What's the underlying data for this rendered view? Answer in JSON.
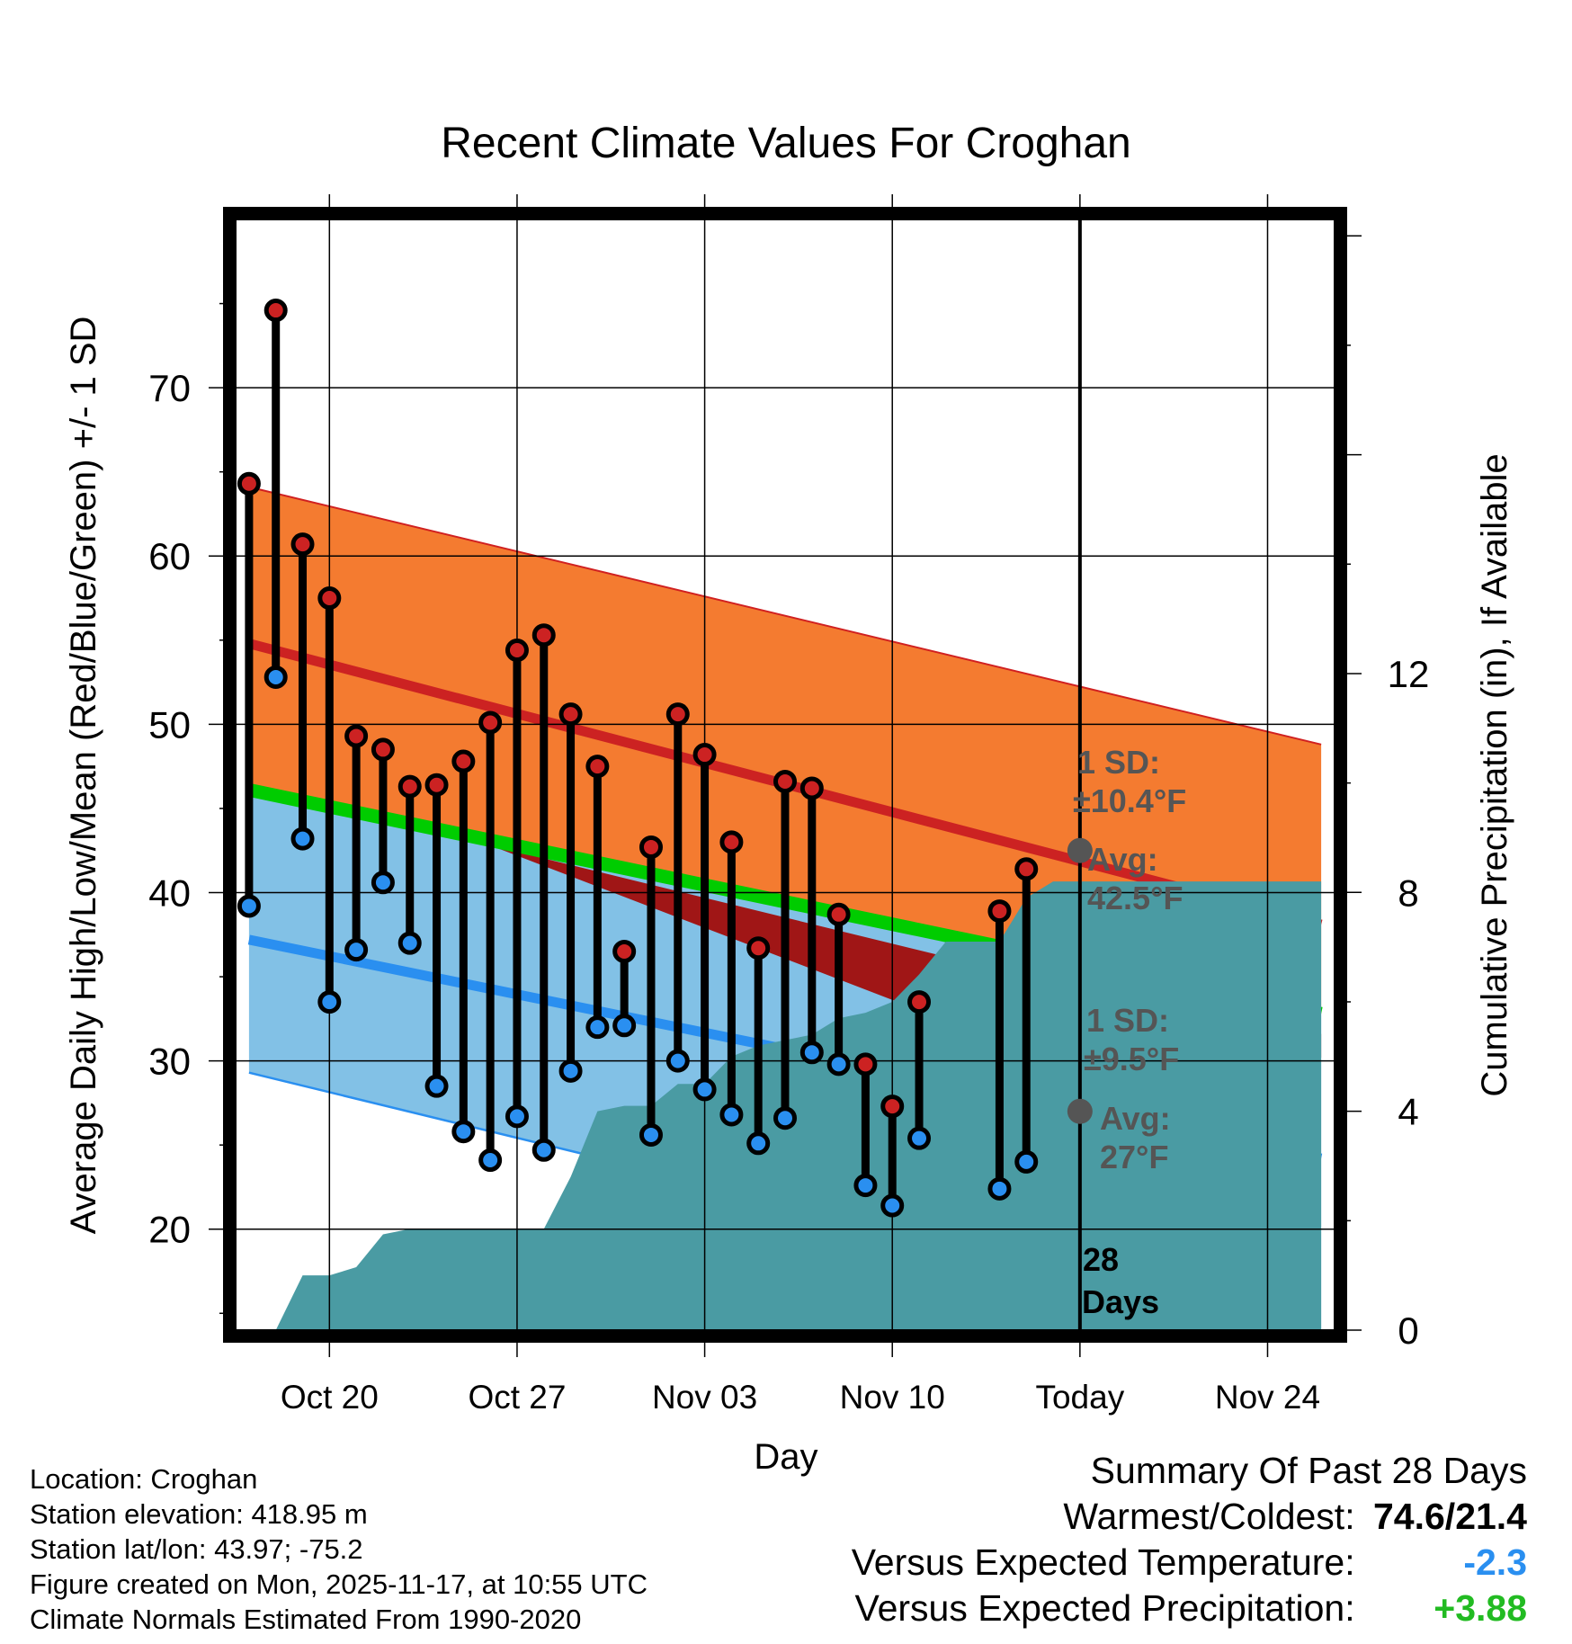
{
  "chart_data": {
    "type": "line",
    "title": "Recent Climate Values For Croghan",
    "xlabel": "Day",
    "ylabel": "Average Daily High/Low/Mean (Red/Blue/Green) +/- 1 SD",
    "y2label": "Cumulative Precipitation (in), If Available",
    "x_tick_labels": [
      "Oct 20",
      "Oct 27",
      "Nov 03",
      "Nov 10",
      "Today",
      "Nov 24"
    ],
    "x_tick_days": [
      3,
      10,
      17,
      24,
      31,
      38
    ],
    "xlim": [
      -0.5,
      40.5
    ],
    "ylim": [
      14,
      80
    ],
    "y_ticks": [
      20,
      30,
      40,
      50,
      60,
      70
    ],
    "y2lim": [
      0,
      20.3
    ],
    "y2_ticks": [
      0,
      4,
      8,
      12
    ],
    "today_day": 31,
    "series": [
      {
        "name": "Daily High",
        "color": "#cc2222",
        "x": [
          0,
          1,
          2,
          3,
          4,
          5,
          6,
          7,
          8,
          9,
          10,
          11,
          12,
          13,
          14,
          15,
          16,
          17,
          18,
          19,
          20,
          21,
          22,
          23,
          24,
          25,
          26,
          27,
          28,
          29
        ],
        "values": [
          64.3,
          74.6,
          60.7,
          57.5,
          49.3,
          48.5,
          46.3,
          46.4,
          47.8,
          50.1,
          54.4,
          55.3,
          50.6,
          47.5,
          36.5,
          42.7,
          50.6,
          48.2,
          43.0,
          36.7,
          46.6,
          46.2,
          38.7,
          29.8,
          27.3,
          33.5,
          null,
          null,
          38.9,
          41.4
        ]
      },
      {
        "name": "Daily Low",
        "color": "#2a8ff0",
        "x": [
          0,
          1,
          2,
          3,
          4,
          5,
          6,
          7,
          8,
          9,
          10,
          11,
          12,
          13,
          14,
          15,
          16,
          17,
          18,
          19,
          20,
          21,
          22,
          23,
          24,
          25,
          26,
          27,
          28,
          29
        ],
        "values": [
          39.2,
          52.8,
          43.2,
          33.5,
          36.6,
          40.6,
          37.0,
          28.5,
          25.8,
          24.1,
          26.7,
          24.7,
          29.4,
          32.0,
          32.1,
          25.6,
          30.0,
          28.3,
          26.8,
          25.1,
          26.6,
          30.5,
          29.8,
          22.6,
          21.4,
          25.4,
          null,
          null,
          22.4,
          24.0
        ]
      },
      {
        "name": "Normal High",
        "color": "#cc2222",
        "x": [
          0,
          40
        ],
        "values": [
          54.8,
          38.1
        ]
      },
      {
        "name": "Normal High +1 SD",
        "x": [
          0,
          40
        ],
        "values": [
          64.1,
          48.8
        ]
      },
      {
        "name": "Normal Mean",
        "color": "#00cc00",
        "x": [
          0,
          40
        ],
        "values": [
          46.1,
          32.8
        ]
      },
      {
        "name": "Normal Low",
        "color": "#2a8ff0",
        "x": [
          0,
          40
        ],
        "values": [
          37.2,
          24.2
        ]
      },
      {
        "name": "Normal Low -1 SD",
        "x": [
          0,
          40
        ],
        "values": [
          29.3,
          13.8
        ]
      },
      {
        "name": "Cumulative Precipitation (in)",
        "color": "#4a9ba3",
        "axis": "right",
        "x": [
          1,
          2,
          3,
          4,
          5,
          6,
          7,
          8,
          9,
          10,
          11,
          12,
          13,
          14,
          15,
          16,
          17,
          18,
          19,
          20,
          21,
          22,
          23,
          24,
          25,
          26,
          27,
          28,
          29,
          30,
          31,
          40
        ],
        "values": [
          0,
          1.0,
          1.0,
          1.15,
          1.75,
          1.85,
          1.85,
          1.85,
          1.85,
          1.85,
          1.85,
          2.8,
          4.0,
          4.1,
          4.1,
          4.5,
          4.5,
          5.0,
          5.2,
          5.3,
          5.4,
          5.7,
          5.8,
          6.0,
          6.5,
          7.1,
          7.1,
          7.1,
          7.9,
          8.2,
          8.2,
          8.2
        ]
      }
    ],
    "annotations": {
      "high_sd_label": "1 SD:",
      "high_sd_value": "±10.4°F",
      "high_avg_label": "Avg:",
      "high_avg_value": "42.5°F",
      "high_avg_point": 42.5,
      "low_sd_label": "1 SD:",
      "low_sd_value": "±9.5°F",
      "low_avg_label": "Avg:",
      "low_avg_value": "27°F",
      "low_avg_point": 27,
      "days_number": "28",
      "days_word": "Days"
    }
  },
  "info": {
    "location": "Location: Croghan",
    "elevation": "Station elevation: 418.95 m",
    "latlon": "Station lat/lon: 43.97; -75.2",
    "created": "Figure created on Mon, 2025-11-17, at 10:55 UTC",
    "normals": "Climate Normals Estimated From 1990-2020"
  },
  "summary": {
    "title": "Summary Of Past 28 Days",
    "warmest_label": "Warmest/Coldest:",
    "warmest_value": "74.6/21.4",
    "temp_label": "Versus Expected Temperature:",
    "temp_value": "-2.3",
    "temp_color": "#2a8ff0",
    "precip_label": "Versus Expected Precipitation:",
    "precip_value": "+3.88",
    "precip_color": "#22bb22"
  }
}
